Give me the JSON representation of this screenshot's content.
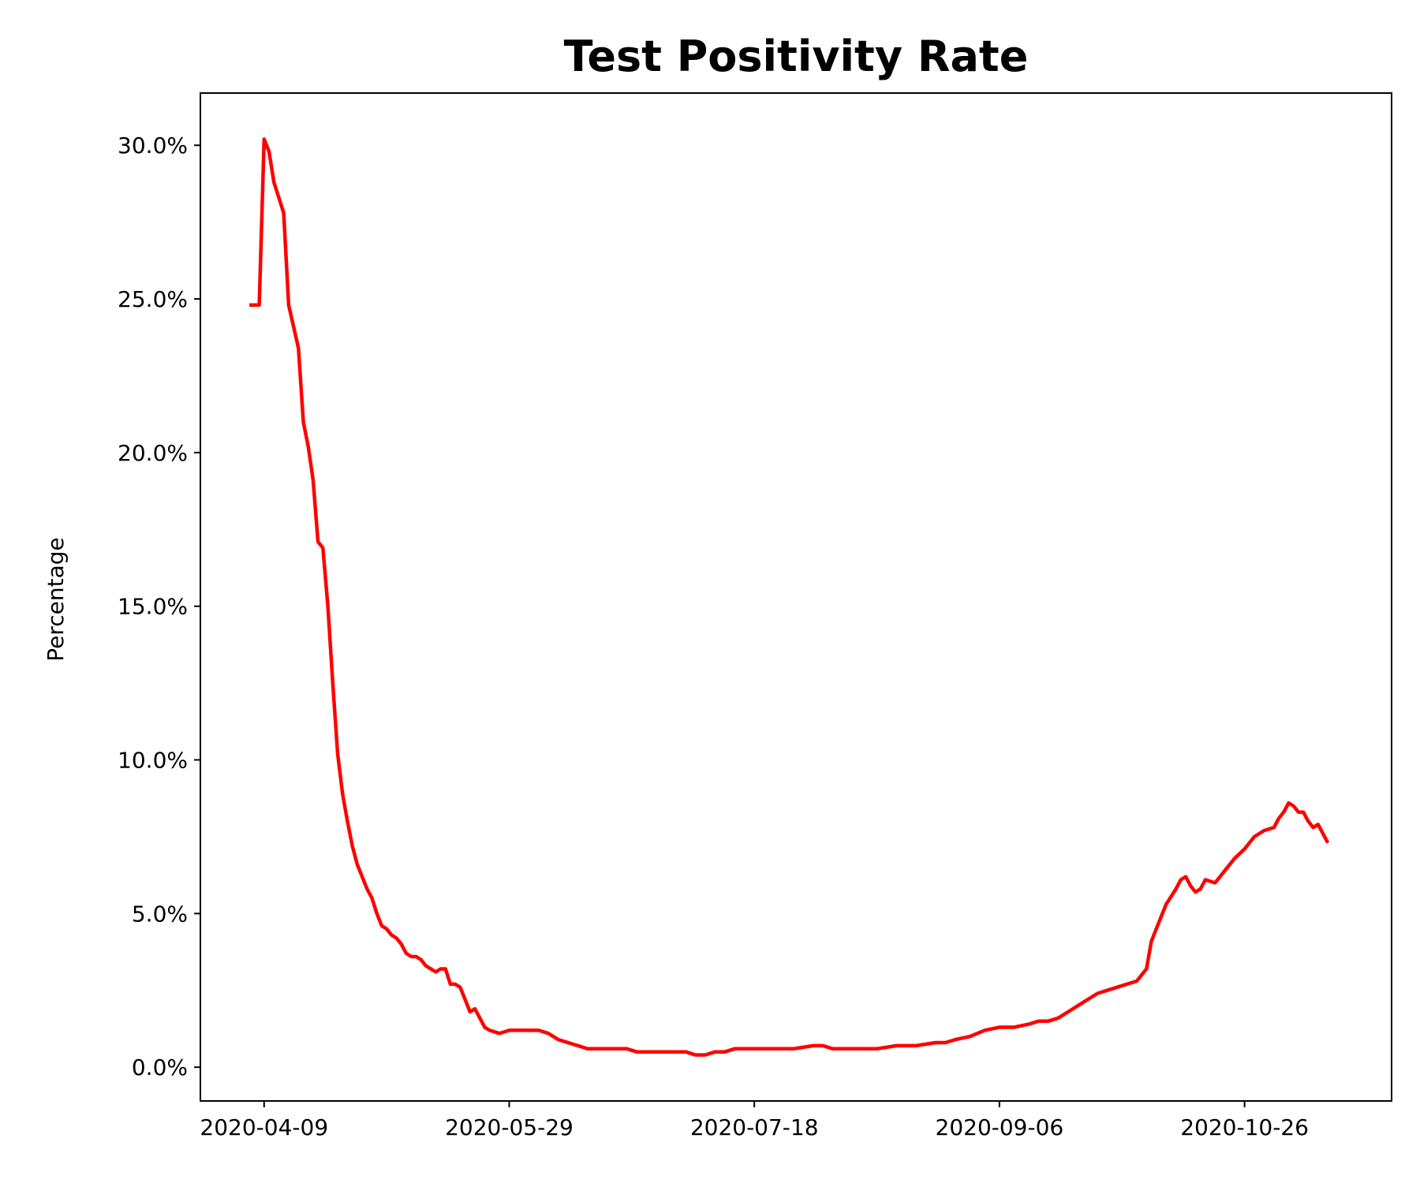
{
  "chart_data": {
    "type": "line",
    "title": "Test Positivity Rate",
    "xlabel": "",
    "ylabel": "Percentage",
    "x_ticks": [
      "2020-04-09",
      "2020-05-29",
      "2020-07-18",
      "2020-09-06",
      "2020-10-26"
    ],
    "y_ticks": [
      "0.0%",
      "5.0%",
      "10.0%",
      "15.0%",
      "20.0%",
      "25.0%",
      "30.0%"
    ],
    "y_tick_values": [
      0,
      5,
      10,
      15,
      20,
      25,
      30
    ],
    "xlim": [
      "2020-03-27",
      "2020-11-25"
    ],
    "ylim": [
      -1.1,
      31.7
    ],
    "grid": false,
    "legend": "none",
    "line_color": "#ff0000",
    "series": [
      {
        "x": [
          "2020-04-06",
          "2020-04-07",
          "2020-04-08",
          "2020-04-09",
          "2020-04-10",
          "2020-04-11",
          "2020-04-12",
          "2020-04-13",
          "2020-04-14",
          "2020-04-15",
          "2020-04-16",
          "2020-04-17",
          "2020-04-18",
          "2020-04-19",
          "2020-04-20",
          "2020-04-21",
          "2020-04-22",
          "2020-04-23",
          "2020-04-24",
          "2020-04-25",
          "2020-04-26",
          "2020-04-27",
          "2020-04-28",
          "2020-04-29",
          "2020-04-30",
          "2020-05-01",
          "2020-05-02",
          "2020-05-03",
          "2020-05-04",
          "2020-05-05",
          "2020-05-06",
          "2020-05-07",
          "2020-05-08",
          "2020-05-09",
          "2020-05-10",
          "2020-05-11",
          "2020-05-12",
          "2020-05-13",
          "2020-05-14",
          "2020-05-15",
          "2020-05-16",
          "2020-05-17",
          "2020-05-18",
          "2020-05-19",
          "2020-05-20",
          "2020-05-21",
          "2020-05-22",
          "2020-05-23",
          "2020-05-24",
          "2020-05-25",
          "2020-05-27",
          "2020-05-29",
          "2020-05-31",
          "2020-06-02",
          "2020-06-04",
          "2020-06-06",
          "2020-06-08",
          "2020-06-10",
          "2020-06-12",
          "2020-06-14",
          "2020-06-16",
          "2020-06-18",
          "2020-06-20",
          "2020-06-22",
          "2020-06-24",
          "2020-06-26",
          "2020-06-28",
          "2020-06-30",
          "2020-07-02",
          "2020-07-04",
          "2020-07-06",
          "2020-07-08",
          "2020-07-10",
          "2020-07-12",
          "2020-07-14",
          "2020-07-16",
          "2020-07-18",
          "2020-07-22",
          "2020-07-26",
          "2020-07-30",
          "2020-08-01",
          "2020-08-03",
          "2020-08-05",
          "2020-08-08",
          "2020-08-12",
          "2020-08-16",
          "2020-08-20",
          "2020-08-24",
          "2020-08-26",
          "2020-08-28",
          "2020-08-31",
          "2020-09-03",
          "2020-09-06",
          "2020-09-09",
          "2020-09-12",
          "2020-09-14",
          "2020-09-16",
          "2020-09-18",
          "2020-09-20",
          "2020-09-22",
          "2020-09-24",
          "2020-09-26",
          "2020-09-28",
          "2020-09-30",
          "2020-10-02",
          "2020-10-04",
          "2020-10-06",
          "2020-10-07",
          "2020-10-08",
          "2020-10-10",
          "2020-10-12",
          "2020-10-13",
          "2020-10-14",
          "2020-10-15",
          "2020-10-16",
          "2020-10-17",
          "2020-10-18",
          "2020-10-20",
          "2020-10-22",
          "2020-10-24",
          "2020-10-26",
          "2020-10-28",
          "2020-10-30",
          "2020-11-01",
          "2020-11-02",
          "2020-11-03",
          "2020-11-04",
          "2020-11-05",
          "2020-11-06",
          "2020-11-07",
          "2020-11-08",
          "2020-11-09",
          "2020-11-10",
          "2020-11-11",
          "2020-11-12"
        ],
        "y": [
          24.8,
          24.8,
          24.8,
          30.2,
          29.8,
          28.8,
          28.3,
          27.8,
          24.8,
          24.1,
          23.4,
          21.0,
          20.2,
          19.1,
          17.1,
          16.9,
          15.0,
          12.5,
          10.2,
          8.9,
          8.0,
          7.2,
          6.6,
          6.2,
          5.8,
          5.5,
          5.0,
          4.6,
          4.5,
          4.3,
          4.2,
          4.0,
          3.7,
          3.6,
          3.6,
          3.5,
          3.3,
          3.2,
          3.1,
          3.2,
          3.2,
          2.7,
          2.7,
          2.6,
          2.2,
          1.8,
          1.9,
          1.6,
          1.3,
          1.2,
          1.1,
          1.2,
          1.2,
          1.2,
          1.2,
          1.1,
          0.9,
          0.8,
          0.7,
          0.6,
          0.6,
          0.6,
          0.6,
          0.6,
          0.5,
          0.5,
          0.5,
          0.5,
          0.5,
          0.5,
          0.4,
          0.4,
          0.5,
          0.5,
          0.6,
          0.6,
          0.6,
          0.6,
          0.6,
          0.7,
          0.7,
          0.6,
          0.6,
          0.6,
          0.6,
          0.7,
          0.7,
          0.8,
          0.8,
          0.9,
          1.0,
          1.2,
          1.3,
          1.3,
          1.4,
          1.5,
          1.5,
          1.6,
          1.8,
          2.0,
          2.2,
          2.4,
          2.5,
          2.6,
          2.7,
          2.8,
          3.2,
          4.1,
          4.5,
          5.3,
          5.8,
          6.1,
          6.2,
          5.9,
          5.7,
          5.8,
          6.1,
          6.0,
          6.4,
          6.8,
          7.1,
          7.5,
          7.7,
          7.8,
          8.1,
          8.3,
          8.6,
          8.5,
          8.3,
          8.3,
          8.0,
          7.8,
          7.9,
          7.6,
          7.3
        ]
      }
    ]
  }
}
